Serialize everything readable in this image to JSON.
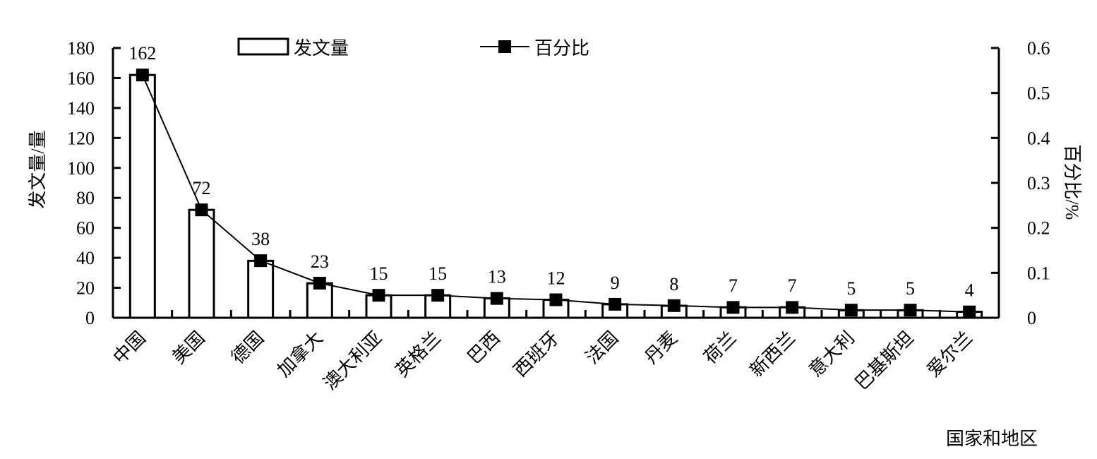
{
  "chart_data": {
    "type": "bar+line",
    "categories": [
      "中国",
      "美国",
      "德国",
      "加拿大",
      "澳大利亚",
      "英格兰",
      "巴西",
      "西班牙",
      "法国",
      "丹麦",
      "荷兰",
      "新西兰",
      "意大利",
      "巴基斯坦",
      "爱尔兰"
    ],
    "series": [
      {
        "name": "发文量",
        "type": "bar",
        "axis": "left",
        "values": [
          162,
          72,
          38,
          23,
          15,
          15,
          13,
          12,
          9,
          8,
          7,
          7,
          5,
          5,
          4
        ],
        "labels": [
          "162",
          "72",
          "38",
          "23",
          "15",
          "15",
          "13",
          "12",
          "9",
          "8",
          "7",
          "7",
          "5",
          "5",
          "4"
        ]
      },
      {
        "name": "百分比",
        "type": "line",
        "axis": "right",
        "marker": "square",
        "values": [
          0.54,
          0.24,
          0.127,
          0.077,
          0.05,
          0.05,
          0.043,
          0.04,
          0.03,
          0.027,
          0.023,
          0.023,
          0.017,
          0.017,
          0.013
        ]
      }
    ],
    "xlabel": "国家和地区",
    "ylabel": "发文量/量",
    "y2label": "百分比/%",
    "ylim": [
      0,
      180
    ],
    "y2lim": [
      0,
      0.6
    ],
    "yticks": [
      "0",
      "20",
      "40",
      "60",
      "80",
      "100",
      "120",
      "140",
      "160",
      "180"
    ],
    "y2ticks": [
      "0",
      "0.1",
      "0.2",
      "0.3",
      "0.4",
      "0.5",
      "0.6"
    ],
    "legend": "top-center",
    "grid": false,
    "colors": {
      "bar_fill": "#ffffff",
      "stroke": "#000000",
      "marker": "#000000"
    }
  }
}
